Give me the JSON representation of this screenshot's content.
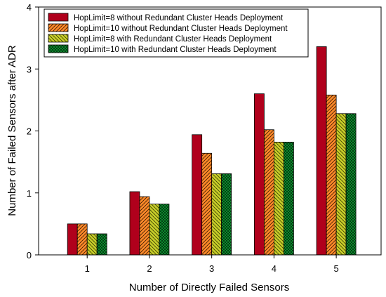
{
  "chart_data": {
    "type": "bar",
    "title": "",
    "xlabel": "Number of Directly Failed Sensors",
    "ylabel": "Number of Failed Sensors after ADR",
    "categories": [
      "1",
      "2",
      "3",
      "4",
      "5"
    ],
    "ylim": [
      0,
      4
    ],
    "yticks": [
      "0",
      "1",
      "2",
      "3",
      "4"
    ],
    "grid": false,
    "legend_position": "top-left",
    "series": [
      {
        "name": "HopLimit=8 without Redundant Cluster Heads Deployment",
        "values": [
          0.5,
          1.02,
          1.94,
          2.6,
          3.36
        ],
        "color": "#b0001c",
        "pattern": "solid"
      },
      {
        "name": "HopLimit=10 without Redundant Cluster Heads Deployment",
        "values": [
          0.5,
          0.94,
          1.64,
          2.02,
          2.58
        ],
        "color": "#ff8a2a",
        "pattern": "hatch"
      },
      {
        "name": "HopLimit=8 with Redundant Cluster Heads Deployment",
        "values": [
          0.34,
          0.82,
          1.31,
          1.82,
          2.28
        ],
        "color": "#c8cf2a",
        "pattern": "hatch"
      },
      {
        "name": "HopLimit=10 with Redundant Cluster Heads Deployment",
        "values": [
          0.34,
          0.82,
          1.31,
          1.82,
          2.28
        ],
        "color": "#0d8a2e",
        "pattern": "checker"
      }
    ]
  }
}
